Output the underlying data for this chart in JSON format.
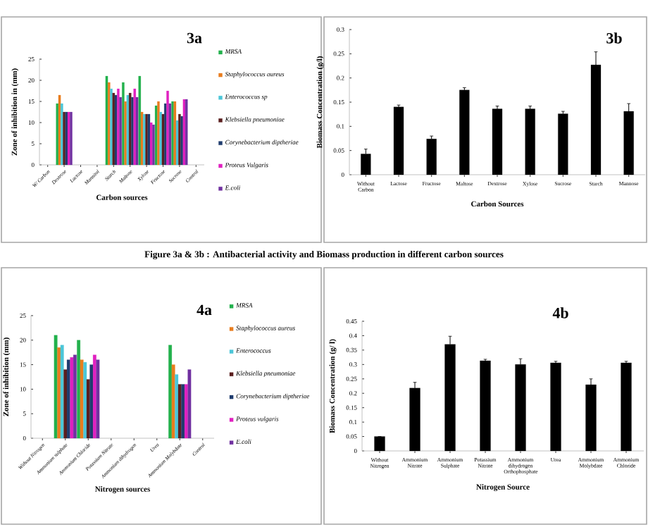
{
  "chart_data": [
    {
      "type": "bar",
      "title": "3a",
      "xlabel": "Carbon sources",
      "ylabel": "Zone of inhibition in (mm)",
      "categories": [
        "W/ Carbon",
        "Dextrose",
        "Lactose",
        "Mannitol",
        "Starch",
        "Maltose",
        "Xylose",
        "Fructose",
        "Sucrose",
        "Control"
      ],
      "ylim": [
        0,
        25
      ],
      "yticks": [
        0,
        5,
        10,
        15,
        20,
        25
      ],
      "legend": "right",
      "annotations": [
        "Figure 3a & 3b : Antibacterial activity and Biomass production in different carbon  sources"
      ],
      "series": [
        {
          "name": "MRSA",
          "color": "#22b14c",
          "values": [
            null,
            14.5,
            null,
            null,
            21,
            19.5,
            21,
            14,
            15,
            null
          ]
        },
        {
          "name": "Staphylococcus aureus",
          "color": "#e87d1e",
          "values": [
            null,
            16.5,
            null,
            null,
            19.5,
            15,
            12.5,
            15,
            15,
            null
          ]
        },
        {
          "name": "Enterococcus sp",
          "color": "#4bc6d8",
          "values": [
            null,
            14.5,
            null,
            null,
            18,
            16.5,
            12,
            12.5,
            10.5,
            null
          ]
        },
        {
          "name": "Klebsiella pneumoniae",
          "color": "#5a1e1e",
          "values": [
            null,
            12.5,
            null,
            null,
            17,
            17,
            12,
            12,
            12,
            null
          ]
        },
        {
          "name": "Corynebacterium diptheriae",
          "color": "#1f3c6e",
          "values": [
            null,
            12.5,
            null,
            null,
            16.5,
            16,
            12,
            14.5,
            11.5,
            null
          ]
        },
        {
          "name": "Proteus Vulgaris",
          "color": "#e020c0",
          "values": [
            null,
            12.5,
            null,
            null,
            18,
            18,
            10,
            17.5,
            15.5,
            null
          ]
        },
        {
          "name": "E.coli",
          "color": "#7030a0",
          "values": [
            null,
            12.5,
            null,
            null,
            16,
            16,
            9.5,
            14.5,
            15.5,
            null
          ]
        }
      ]
    },
    {
      "type": "bar",
      "title": "3b",
      "xlabel": "Carbon Sources",
      "ylabel": "Biomass Concentration (g/l)",
      "categories": [
        "Without Carbon",
        "Lactose",
        "Fructose",
        "Maltose",
        "Dextrose",
        "Xylose",
        "Sucrose",
        "Starch",
        "Mannose"
      ],
      "ylim": [
        0,
        0.3
      ],
      "yticks": [
        0,
        0.05,
        0.1,
        0.15,
        0.2,
        0.25,
        0.3
      ],
      "series": [
        {
          "color": "#000000",
          "values": [
            0.043,
            0.14,
            0.074,
            0.175,
            0.136,
            0.136,
            0.126,
            0.227,
            0.131
          ],
          "errors": [
            0.01,
            0.004,
            0.006,
            0.005,
            0.006,
            0.006,
            0.005,
            0.027,
            0.016
          ]
        }
      ]
    },
    {
      "type": "bar",
      "title": "4a",
      "xlabel": "Nitrogen sources",
      "ylabel": "Zone of inhibition (mm)",
      "categories": [
        "Without Nitrogen",
        "Ammonium sulphate",
        "Ammonium Chloride",
        "Potassium Nitrate",
        "Ammonium dihydrogen",
        "Urea",
        "Ammonium Molybdate",
        "Control"
      ],
      "ylim": [
        0,
        25
      ],
      "yticks": [
        0,
        5,
        10,
        15,
        20,
        25
      ],
      "legend": "right",
      "series": [
        {
          "name": "MRSA",
          "color": "#22b14c",
          "values": [
            null,
            21,
            20,
            null,
            null,
            null,
            19,
            null
          ]
        },
        {
          "name": "Staphylococcus aureus",
          "color": "#e87d1e",
          "values": [
            null,
            18.5,
            16,
            null,
            null,
            null,
            15,
            null
          ]
        },
        {
          "name": "Enterococcus",
          "color": "#4bc6d8",
          "values": [
            null,
            19,
            15.5,
            null,
            null,
            null,
            13,
            null
          ]
        },
        {
          "name": "Klebsiella pneumoniae",
          "color": "#5a1e1e",
          "values": [
            null,
            14,
            12,
            null,
            null,
            null,
            11,
            null
          ]
        },
        {
          "name": "Corynebacterium diptheriae",
          "color": "#1f3c6e",
          "values": [
            null,
            16,
            15,
            null,
            null,
            null,
            11,
            null
          ]
        },
        {
          "name": "Proteus vulgaris",
          "color": "#e020c0",
          "values": [
            null,
            16.5,
            17,
            null,
            null,
            null,
            11,
            null
          ]
        },
        {
          "name": "E.coli",
          "color": "#7030a0",
          "values": [
            null,
            17,
            16,
            null,
            null,
            null,
            14,
            null
          ]
        }
      ]
    },
    {
      "type": "bar",
      "title": "4b",
      "xlabel": "Nitrogen Source",
      "ylabel": "Biomass Concentration (g/ l)",
      "categories": [
        "Without Nitrogen",
        "Ammonium Nitrate",
        "Ammonium Sulphate",
        "Potassium Nitrate",
        "Ammonium dihydrogen Orthophosphate",
        "Urea",
        "Ammonium Molybdate",
        "Ammonium Chloride"
      ],
      "ylim": [
        0,
        0.45
      ],
      "yticks": [
        0,
        0.05,
        0.1,
        0.15,
        0.2,
        0.25,
        0.3,
        0.35,
        0.4,
        0.45
      ],
      "series": [
        {
          "color": "#000000",
          "values": [
            0.05,
            0.218,
            0.37,
            0.313,
            0.3,
            0.306,
            0.23,
            0.306
          ],
          "errors": [
            null,
            0.02,
            0.028,
            0.005,
            0.02,
            0.005,
            0.02,
            0.005
          ]
        }
      ]
    }
  ]
}
